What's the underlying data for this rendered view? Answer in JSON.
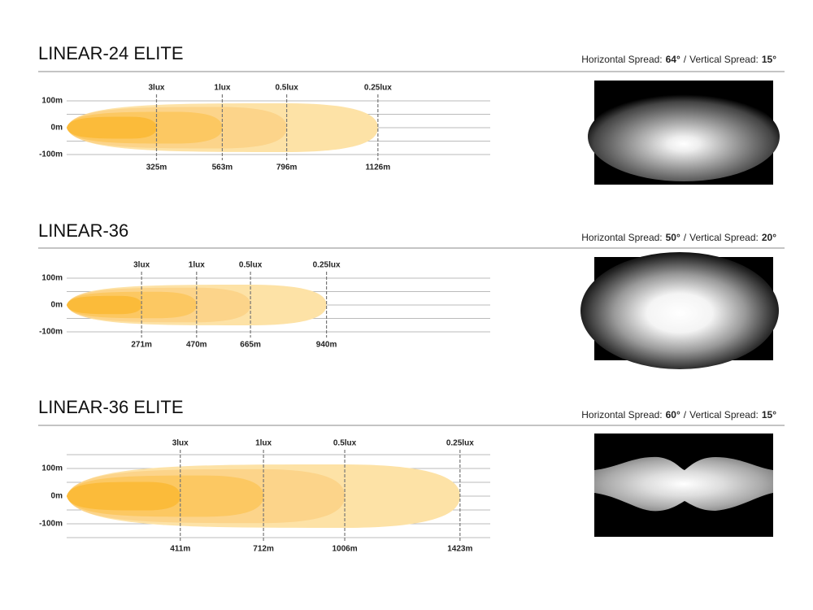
{
  "products": [
    {
      "title": "LINEAR-24 ELITE",
      "spread": {
        "horizontal_label": "Horizontal Spread:",
        "horizontal_value": "64°",
        "separator": "/",
        "vertical_label": "Vertical Spread:",
        "vertical_value": "15°"
      },
      "y_labels": [
        "100m",
        "0m",
        "-100m"
      ],
      "zones": [
        {
          "lux": "3lux",
          "distance": {
            "value": 325,
            "label": "325m"
          }
        },
        {
          "lux": "1lux",
          "distance": {
            "value": 563,
            "label": "563m"
          }
        },
        {
          "lux": "0.5lux",
          "distance": {
            "value": 796,
            "label": "796m"
          }
        },
        {
          "lux": "0.25lux",
          "distance": {
            "value": 1126,
            "label": "1126m"
          }
        }
      ]
    },
    {
      "title": "LINEAR-36",
      "spread": {
        "horizontal_label": "Horizontal Spread:",
        "horizontal_value": "50°",
        "separator": "/",
        "vertical_label": "Vertical Spread:",
        "vertical_value": "20°"
      },
      "y_labels": [
        "100m",
        "0m",
        "-100m"
      ],
      "zones": [
        {
          "lux": "3lux",
          "distance": {
            "value": 271,
            "label": "271m"
          }
        },
        {
          "lux": "1lux",
          "distance": {
            "value": 470,
            "label": "470m"
          }
        },
        {
          "lux": "0.5lux",
          "distance": {
            "value": 665,
            "label": "665m"
          }
        },
        {
          "lux": "0.25lux",
          "distance": {
            "value": 940,
            "label": "940m"
          }
        }
      ]
    },
    {
      "title": "LINEAR-36 ELITE",
      "spread": {
        "horizontal_label": "Horizontal Spread:",
        "horizontal_value": "60°",
        "separator": "/",
        "vertical_label": "Vertical Spread:",
        "vertical_value": "15°"
      },
      "y_labels": [
        "100m",
        "0m",
        "-100m"
      ],
      "zones": [
        {
          "lux": "3lux",
          "distance": {
            "value": 411,
            "label": "411m"
          }
        },
        {
          "lux": "1lux",
          "distance": {
            "value": 712,
            "label": "712m"
          }
        },
        {
          "lux": "0.5lux",
          "distance": {
            "value": 1006,
            "label": "1006m"
          }
        },
        {
          "lux": "0.25lux",
          "distance": {
            "value": 1423,
            "label": "1423m"
          }
        }
      ]
    }
  ]
}
